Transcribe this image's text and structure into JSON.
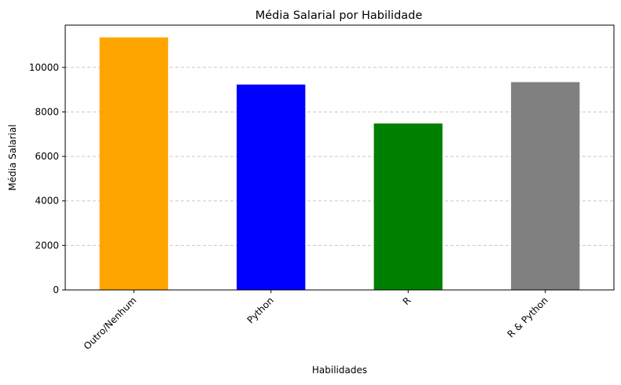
{
  "chart_data": {
    "type": "bar",
    "title": "Média Salarial por Habilidade",
    "xlabel": "Habilidades",
    "ylabel": "Média Salarial",
    "categories": [
      "Outro/Nenhum",
      "Python",
      "R",
      "R & Python"
    ],
    "values": [
      11350,
      9230,
      7480,
      9340
    ],
    "colors": [
      "#ffa500",
      "#0000ff",
      "#008000",
      "#808080"
    ],
    "ylim": [
      0,
      11900
    ],
    "yticks": [
      0,
      2000,
      4000,
      6000,
      8000,
      10000
    ],
    "ytick_labels": [
      "0",
      "2000",
      "4000",
      "6000",
      "8000",
      "10000"
    ],
    "grid": "y-dashed",
    "legend": "none"
  }
}
